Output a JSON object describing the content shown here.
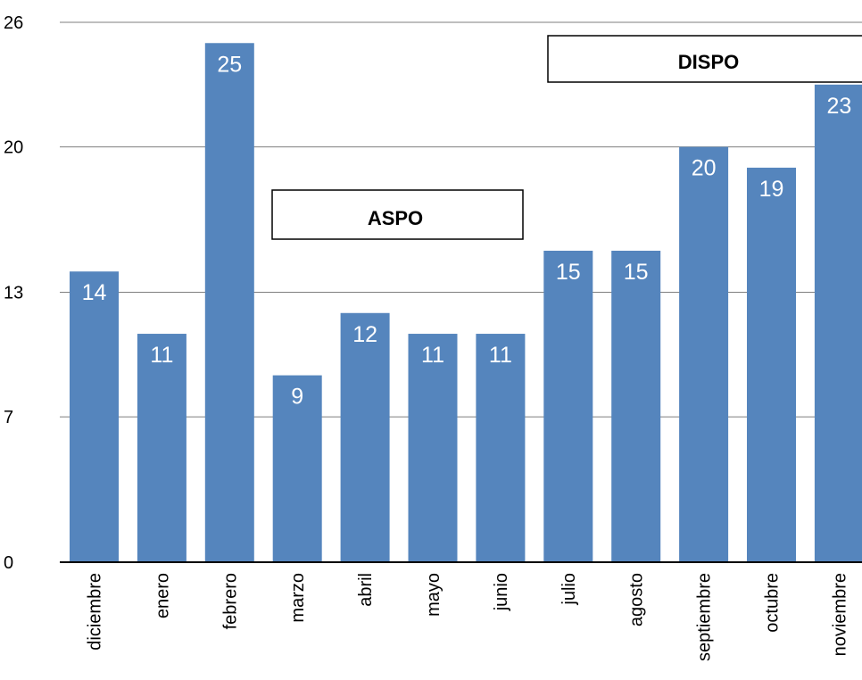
{
  "chart_data": {
    "type": "bar",
    "title": "",
    "xlabel": "",
    "ylabel": "",
    "categories": [
      "diciembre",
      "enero",
      "febrero",
      "marzo",
      "abril",
      "mayo",
      "junio",
      "julio",
      "agosto",
      "septiembre",
      "octubre",
      "noviembre"
    ],
    "values": [
      14,
      11,
      25,
      9,
      12,
      11,
      11,
      15,
      15,
      20,
      19,
      23
    ],
    "ylim": [
      0,
      26
    ],
    "yticks": [
      0,
      7,
      13,
      20,
      26
    ],
    "ytick_labels": [
      "0",
      "7",
      "13",
      "20",
      "26"
    ],
    "grid": true,
    "legend": "none",
    "data_labels": true,
    "annotations": [
      {
        "text": "ASPO"
      },
      {
        "text": "DISPO"
      }
    ],
    "colors": {
      "bar": "#5585bd",
      "bar_label": "#ffffff",
      "grid": "#7f7f7f",
      "axis": "#000000",
      "annotation_border": "#000000",
      "annotation_fill": "#ffffff"
    }
  }
}
